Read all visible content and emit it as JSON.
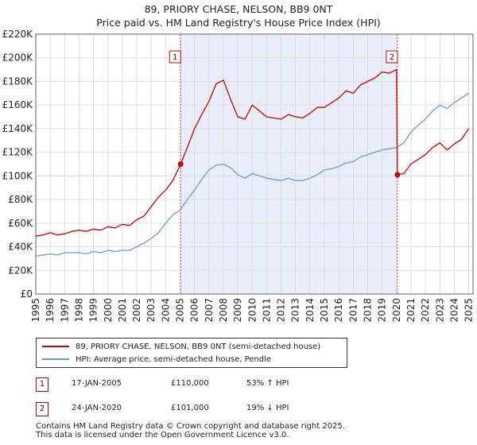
{
  "title_line1": "89, PRIORY CHASE, NELSON, BB9 0NT",
  "title_line2": "Price paid vs. HM Land Registry's House Price Index (HPI)",
  "colors": {
    "red": "#cc0000",
    "blue": "#6b9bd1",
    "shade": "#e8eefa",
    "grid": "#dddddd"
  },
  "chart_data": {
    "type": "line",
    "title": "Price paid vs. HM Land Registry's House Price Index (HPI)",
    "xlabel": "",
    "ylabel": "",
    "xlim": [
      1995,
      2025.3
    ],
    "ylim": [
      0,
      220000
    ],
    "y_ticks": [
      0,
      20000,
      40000,
      60000,
      80000,
      100000,
      120000,
      140000,
      160000,
      180000,
      200000,
      220000
    ],
    "y_tick_labels": [
      "£0",
      "£20K",
      "£40K",
      "£60K",
      "£80K",
      "£100K",
      "£120K",
      "£140K",
      "£160K",
      "£180K",
      "£200K",
      "£220K"
    ],
    "x_ticks": [
      "1995",
      "1996",
      "1997",
      "1998",
      "1999",
      "2000",
      "2001",
      "2002",
      "2003",
      "2004",
      "2005",
      "2006",
      "2007",
      "2008",
      "2009",
      "2010",
      "2011",
      "2012",
      "2013",
      "2014",
      "2015",
      "2016",
      "2017",
      "2018",
      "2019",
      "2020",
      "2021",
      "2022",
      "2023",
      "2024",
      "2025"
    ],
    "shaded_region": [
      2005.04,
      2020.06
    ],
    "series": [
      {
        "name": "89, PRIORY CHASE, NELSON, BB9 0NT (semi-detached house)",
        "color": "#cc0000",
        "x": [
          1995.0,
          1995.5,
          1996.0,
          1996.5,
          1997.0,
          1997.5,
          1998.0,
          1998.5,
          1999.0,
          1999.5,
          2000.0,
          2000.5,
          2001.0,
          2001.5,
          2002.0,
          2002.5,
          2003.0,
          2003.5,
          2004.0,
          2004.5,
          2005.04,
          2005.5,
          2006.0,
          2006.5,
          2007.0,
          2007.5,
          2008.0,
          2008.5,
          2009.0,
          2009.5,
          2010.0,
          2010.5,
          2011.0,
          2011.5,
          2012.0,
          2012.5,
          2013.0,
          2013.5,
          2014.0,
          2014.5,
          2015.0,
          2015.5,
          2016.0,
          2016.5,
          2017.0,
          2017.5,
          2018.0,
          2018.5,
          2019.0,
          2019.5,
          2020.0,
          2020.06,
          2020.5,
          2021.0,
          2021.5,
          2022.0,
          2022.5,
          2023.0,
          2023.5,
          2024.0,
          2024.5,
          2025.0
        ],
        "y": [
          49000,
          50000,
          52000,
          50000,
          51000,
          53000,
          54000,
          53000,
          55000,
          54000,
          57000,
          56000,
          59000,
          58000,
          63000,
          66000,
          74000,
          82000,
          88000,
          96000,
          110000,
          124000,
          140000,
          152000,
          163000,
          178000,
          181000,
          165000,
          150000,
          148000,
          160000,
          155000,
          150000,
          149000,
          148000,
          152000,
          150000,
          149000,
          153000,
          158000,
          158000,
          162000,
          166000,
          172000,
          170000,
          177000,
          180000,
          183000,
          188000,
          187000,
          190000,
          101000,
          102000,
          110000,
          114000,
          118000,
          124000,
          128000,
          122000,
          127000,
          131000,
          140000
        ]
      },
      {
        "name": "HPI: Average price, semi-detached house, Pendle",
        "color": "#6b9bd1",
        "x": [
          1995.0,
          1995.5,
          1996.0,
          1996.5,
          1997.0,
          1997.5,
          1998.0,
          1998.5,
          1999.0,
          1999.5,
          2000.0,
          2000.5,
          2001.0,
          2001.5,
          2002.0,
          2002.5,
          2003.0,
          2003.5,
          2004.0,
          2004.5,
          2005.0,
          2005.5,
          2006.0,
          2006.5,
          2007.0,
          2007.5,
          2008.0,
          2008.5,
          2009.0,
          2009.5,
          2010.0,
          2010.5,
          2011.0,
          2011.5,
          2012.0,
          2012.5,
          2013.0,
          2013.5,
          2014.0,
          2014.5,
          2015.0,
          2015.5,
          2016.0,
          2016.5,
          2017.0,
          2017.5,
          2018.0,
          2018.5,
          2019.0,
          2019.5,
          2020.0,
          2020.5,
          2021.0,
          2021.5,
          2022.0,
          2022.5,
          2023.0,
          2023.5,
          2024.0,
          2024.5,
          2025.0
        ],
        "y": [
          32000,
          33000,
          34000,
          33000,
          35000,
          35000,
          35000,
          34000,
          36000,
          35000,
          37000,
          36000,
          37000,
          37000,
          40000,
          43000,
          47000,
          52000,
          60000,
          67000,
          71000,
          80000,
          88000,
          97000,
          105000,
          109000,
          110000,
          107000,
          101000,
          98000,
          102000,
          100000,
          98000,
          97000,
          96000,
          98000,
          96000,
          96000,
          98000,
          101000,
          105000,
          106000,
          108000,
          111000,
          112000,
          116000,
          118000,
          120000,
          122000,
          123000,
          124000,
          128000,
          137000,
          143000,
          148000,
          155000,
          160000,
          157000,
          162000,
          166000,
          170000
        ]
      }
    ],
    "annotations": [
      {
        "label": "1",
        "x": 2005.04,
        "y": 110000
      },
      {
        "label": "2",
        "x": 2020.06,
        "y": 101000
      }
    ]
  },
  "legend": {
    "items": [
      "89, PRIORY CHASE, NELSON, BB9 0NT (semi-detached house)",
      "HPI: Average price, semi-detached house, Pendle"
    ]
  },
  "transactions": [
    {
      "num": "1",
      "date": "17-JAN-2005",
      "price": "£110,000",
      "hpi": "53% ↑ HPI"
    },
    {
      "num": "2",
      "date": "24-JAN-2020",
      "price": "£101,000",
      "hpi": "19% ↓ HPI"
    }
  ],
  "footer": {
    "line1": "Contains HM Land Registry data © Crown copyright and database right 2025.",
    "line2": "This data is licensed under the Open Government Licence v3.0."
  }
}
